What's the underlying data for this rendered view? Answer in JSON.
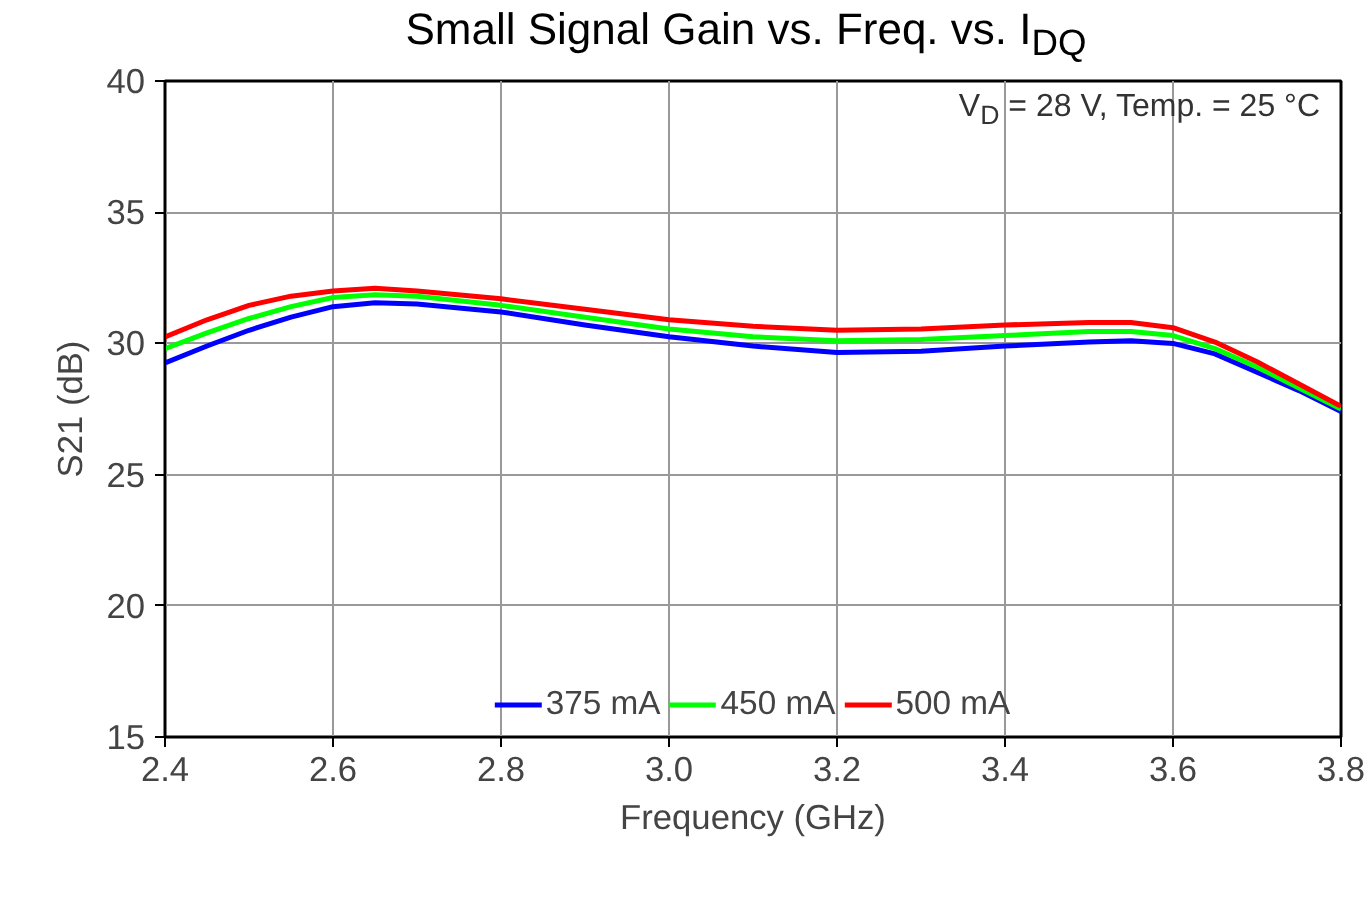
{
  "chart_data": {
    "type": "line",
    "title": "Small Signal Gain vs. Freq. vs. I$_{DQ}$",
    "xlabel": "Frequency (GHz)",
    "ylabel": "S21 (dB)",
    "annotations": [
      "V$_{D}$ = 28 V, Temp. = 25 °C"
    ],
    "x": [
      2.4,
      2.45,
      2.5,
      2.55,
      2.6,
      2.65,
      2.7,
      2.8,
      2.9,
      3.0,
      3.1,
      3.2,
      3.3,
      3.4,
      3.5,
      3.55,
      3.6,
      3.65,
      3.7,
      3.75,
      3.8
    ],
    "series": [
      {
        "name": "375 mA",
        "color": "#0000ff",
        "values": [
          29.26,
          29.9,
          30.5,
          31.0,
          31.4,
          31.55,
          31.5,
          31.2,
          30.7,
          30.25,
          29.9,
          29.65,
          29.7,
          29.9,
          30.05,
          30.1,
          30.0,
          29.6,
          28.9,
          28.2,
          27.4
        ]
      },
      {
        "name": "450 mA",
        "color": "#00ff00",
        "values": [
          29.8,
          30.4,
          30.95,
          31.4,
          31.75,
          31.85,
          31.8,
          31.45,
          31.0,
          30.55,
          30.25,
          30.1,
          30.15,
          30.3,
          30.45,
          30.45,
          30.3,
          29.8,
          29.1,
          28.3,
          27.5
        ]
      },
      {
        "name": "500 mA",
        "color": "#ff0000",
        "values": [
          30.25,
          30.9,
          31.45,
          31.8,
          32.0,
          32.1,
          32.0,
          31.7,
          31.3,
          30.9,
          30.65,
          30.5,
          30.55,
          30.7,
          30.8,
          30.8,
          30.6,
          30.05,
          29.3,
          28.45,
          27.6
        ]
      }
    ],
    "xlim": [
      2.4,
      3.8
    ],
    "ylim": [
      15,
      40
    ],
    "xticks": [
      {
        "value": 2.4,
        "label": "2.4"
      },
      {
        "value": 2.6,
        "label": "2.6"
      },
      {
        "value": 2.8,
        "label": "2.8"
      },
      {
        "value": 3.0,
        "label": "3.0"
      },
      {
        "value": 3.2,
        "label": "3.2"
      },
      {
        "value": 3.4,
        "label": "3.4"
      },
      {
        "value": 3.6,
        "label": "3.6"
      },
      {
        "value": 3.8,
        "label": "3.8"
      }
    ],
    "yticks": [
      15,
      20,
      25,
      30,
      35,
      40
    ],
    "grid": true,
    "legend": "bottom",
    "marker": "none",
    "line_style": "solid"
  }
}
